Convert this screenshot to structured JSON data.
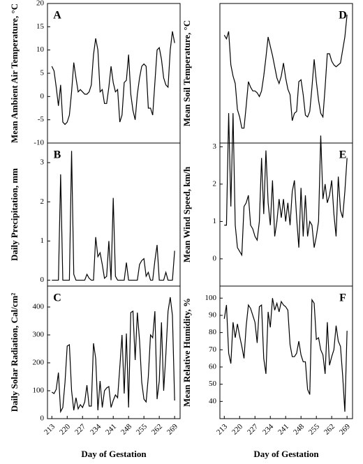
{
  "chart_data": [
    {
      "type": "line",
      "title": "A",
      "ylabel": "Mean Ambient Air Temperature, °C",
      "color": "#000000",
      "x": [
        213,
        214,
        215,
        216,
        217,
        218,
        219,
        220,
        221,
        222,
        223,
        224,
        225,
        226,
        227,
        228,
        229,
        230,
        231,
        232,
        233,
        234,
        235,
        236,
        237,
        238,
        239,
        240,
        241,
        242,
        243,
        244,
        245,
        246,
        247,
        248,
        249,
        250,
        251,
        252,
        253,
        254,
        255,
        256,
        257,
        258,
        259,
        260,
        261,
        262,
        263,
        264,
        265,
        266,
        267,
        268,
        269
      ],
      "values": [
        6.5,
        5.5,
        2,
        -2,
        2.5,
        -5.5,
        -6,
        -5.5,
        -4,
        1,
        7.3,
        4,
        1,
        1.5,
        1,
        0.5,
        0.5,
        1,
        2.5,
        9,
        12.5,
        10,
        1,
        1.5,
        -1.5,
        -1.5,
        2,
        6.5,
        3,
        1,
        1.5,
        -5.5,
        -4,
        3,
        3.5,
        9,
        0.5,
        -3,
        -5,
        0.5,
        4,
        6.5,
        7,
        6.5,
        -2.5,
        -2.5,
        -4,
        3,
        10,
        10.5,
        8,
        4,
        2.5,
        2,
        10,
        14,
        11.5
      ],
      "xlim": [
        211,
        271.5
      ],
      "ylim": [
        -10,
        20
      ],
      "yticks": [
        -10,
        -5,
        0,
        5,
        10,
        15,
        20
      ]
    },
    {
      "type": "line",
      "title": "B",
      "ylabel": "Daily Precipitation, mm",
      "color": "#000000",
      "x": [
        213,
        214,
        215,
        216,
        217,
        218,
        219,
        220,
        221,
        222,
        223,
        224,
        225,
        226,
        227,
        228,
        229,
        230,
        231,
        232,
        233,
        234,
        235,
        236,
        237,
        238,
        239,
        240,
        241,
        242,
        243,
        244,
        245,
        246,
        247,
        248,
        249,
        250,
        251,
        252,
        253,
        254,
        255,
        256,
        257,
        258,
        259,
        260,
        261,
        262,
        263,
        264,
        265,
        266,
        267,
        268,
        269
      ],
      "values": [
        0,
        0,
        0,
        0,
        2.7,
        0,
        0,
        0,
        0,
        3.3,
        0.15,
        0,
        0,
        0,
        0,
        0,
        0.15,
        0.05,
        0,
        0,
        1.1,
        0.6,
        0.7,
        0.4,
        0.05,
        0.1,
        1,
        0,
        2.1,
        0.1,
        0,
        0,
        0,
        0,
        0.45,
        0,
        0,
        0,
        0,
        0,
        0.4,
        0.5,
        0.55,
        0.1,
        0.2,
        0,
        0,
        0.5,
        0.9,
        0,
        0,
        0,
        0.2,
        0,
        0,
        0,
        0.75
      ],
      "xlim": [
        211,
        271.5
      ],
      "ylim": [
        -0.15,
        3.5
      ],
      "yticks": [
        0,
        1,
        2,
        3
      ]
    },
    {
      "type": "line",
      "title": "C",
      "ylabel": "Daily Solar Radiation, Cal/cm²",
      "xlabel": "Day of Gestation",
      "color": "#000000",
      "x": [
        213,
        214,
        215,
        216,
        217,
        218,
        219,
        220,
        221,
        222,
        223,
        224,
        225,
        226,
        227,
        228,
        229,
        230,
        231,
        232,
        233,
        234,
        235,
        236,
        237,
        238,
        239,
        240,
        241,
        242,
        243,
        244,
        245,
        246,
        247,
        248,
        249,
        250,
        251,
        252,
        253,
        254,
        255,
        256,
        257,
        258,
        259,
        260,
        261,
        262,
        263,
        264,
        265,
        266,
        267,
        268,
        269
      ],
      "values": [
        95,
        90,
        105,
        165,
        25,
        40,
        130,
        260,
        265,
        100,
        30,
        75,
        35,
        50,
        40,
        60,
        120,
        45,
        45,
        270,
        215,
        30,
        135,
        40,
        100,
        110,
        115,
        40,
        65,
        85,
        75,
        185,
        300,
        90,
        305,
        40,
        380,
        385,
        210,
        380,
        280,
        130,
        70,
        60,
        150,
        300,
        290,
        385,
        70,
        135,
        345,
        100,
        230,
        385,
        435,
        370,
        65
      ],
      "xlim": [
        211,
        271.5
      ],
      "xticks": [
        213,
        220,
        227,
        234,
        241,
        248,
        255,
        262,
        269
      ],
      "ylim": [
        0,
        475
      ],
      "yticks": [
        0,
        100,
        200,
        300,
        400
      ]
    },
    {
      "type": "line",
      "title": "D",
      "ylabel": "Mean Soil Temperature, °C",
      "color": "#000000",
      "x": [
        213,
        214,
        215,
        216,
        217,
        218,
        219,
        220,
        221,
        222,
        223,
        224,
        225,
        226,
        227,
        228,
        229,
        230,
        231,
        232,
        233,
        234,
        235,
        236,
        237,
        238,
        239,
        240,
        241,
        242,
        243,
        244,
        245,
        246,
        247,
        248,
        249,
        250,
        251,
        252,
        253,
        254,
        255,
        256,
        257,
        258,
        259,
        260,
        261,
        262,
        263,
        264,
        265,
        266,
        267,
        268,
        269
      ],
      "values": [
        6.8,
        6.6,
        7.0,
        5.2,
        4.6,
        4.2,
        2.8,
        2.4,
        1.8,
        1.8,
        3.0,
        4.3,
        4.0,
        3.8,
        3.8,
        3.7,
        3.5,
        3.8,
        4.6,
        5.6,
        6.7,
        6.2,
        5.7,
        5.1,
        4.5,
        4.2,
        4.6,
        5.3,
        4.5,
        3.9,
        3.6,
        2.2,
        2.6,
        2.7,
        4.3,
        4.4,
        3.6,
        2.5,
        2.4,
        2.7,
        4.0,
        5.5,
        4.3,
        3.3,
        2.6,
        2.4,
        4.0,
        5.8,
        5.8,
        5.4,
        5.2,
        5.1,
        5.2,
        5.3,
        6.0,
        6.7,
        7.9
      ],
      "xlim": [
        211,
        271.5
      ],
      "ylim": [
        1,
        8.5
      ]
    },
    {
      "type": "line",
      "title": "E",
      "ylabel": "Mean Wind  Speed, km/h",
      "color": "#000000",
      "x": [
        213,
        214,
        215,
        216,
        217,
        218,
        219,
        220,
        221,
        222,
        223,
        224,
        225,
        226,
        227,
        228,
        229,
        230,
        231,
        232,
        233,
        234,
        235,
        236,
        237,
        238,
        239,
        240,
        241,
        242,
        243,
        244,
        245,
        246,
        247,
        248,
        249,
        250,
        251,
        252,
        253,
        254,
        255,
        256,
        257,
        258,
        259,
        260,
        261,
        262,
        263,
        264,
        265,
        266,
        267,
        268,
        269
      ],
      "values": [
        0.9,
        0.9,
        3.9,
        1.4,
        3.9,
        0.9,
        0.3,
        0.2,
        0.1,
        1.4,
        1.5,
        1.7,
        0.9,
        0.8,
        0.6,
        0.5,
        1.0,
        2.7,
        1.2,
        2.9,
        1.5,
        0.9,
        2.1,
        0.6,
        1.0,
        1.6,
        1.1,
        1.6,
        1.0,
        1.5,
        0.9,
        1.8,
        2.1,
        1.1,
        0.3,
        1.9,
        0.6,
        1.7,
        0.6,
        1.0,
        0.9,
        0.3,
        0.6,
        1.0,
        3.3,
        1.6,
        2.0,
        1.5,
        1.7,
        2.1,
        1.2,
        0.6,
        2.2,
        1.3,
        1.1,
        1.8,
        2.7
      ],
      "xlim": [
        211,
        271.5
      ],
      "ylim": [
        -0.73,
        3.1
      ],
      "yticks": [
        0,
        1,
        2,
        3
      ]
    },
    {
      "type": "line",
      "title": "F",
      "ylabel": "Mean Relative Humidity, %",
      "xlabel": "Day of Gestation",
      "color": "#000000",
      "x": [
        213,
        214,
        215,
        216,
        217,
        218,
        219,
        220,
        221,
        222,
        223,
        224,
        225,
        226,
        227,
        228,
        229,
        230,
        231,
        232,
        233,
        234,
        235,
        236,
        237,
        238,
        239,
        240,
        241,
        242,
        243,
        244,
        245,
        246,
        247,
        248,
        249,
        250,
        251,
        252,
        253,
        254,
        255,
        256,
        257,
        258,
        259,
        260,
        261,
        262,
        263,
        264,
        265,
        266,
        267,
        268,
        269
      ],
      "values": [
        88,
        96,
        68,
        62,
        86,
        77,
        85,
        78,
        72,
        65,
        84,
        96,
        94,
        90,
        86,
        74,
        95,
        96,
        65,
        56,
        92,
        83,
        100,
        93,
        97,
        92,
        98,
        96,
        95,
        93,
        73,
        66,
        66,
        68,
        75,
        67,
        63,
        63,
        47,
        44,
        99,
        97,
        76,
        77,
        70,
        67,
        56,
        86,
        61,
        66,
        70,
        84,
        75,
        72,
        55,
        34,
        81
      ],
      "xlim": [
        211,
        271.5
      ],
      "xticks": [
        213,
        220,
        227,
        234,
        241,
        248,
        255,
        262,
        269
      ],
      "ylim": [
        30,
        107
      ],
      "yticks": [
        40,
        50,
        60,
        70,
        80,
        90,
        100
      ]
    }
  ]
}
